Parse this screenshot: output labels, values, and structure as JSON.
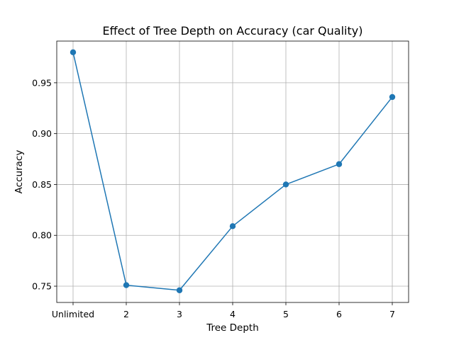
{
  "chart_data": {
    "type": "line",
    "title": "Effect of Tree Depth on Accuracy (car Quality)",
    "xlabel": "Tree Depth",
    "ylabel": "Accuracy",
    "categories": [
      "Unlimited",
      "2",
      "3",
      "4",
      "5",
      "6",
      "7"
    ],
    "series": [
      {
        "values": [
          0.98,
          0.751,
          0.746,
          0.809,
          0.85,
          0.87,
          0.936
        ],
        "color": "#1f77b4",
        "marker": "circle"
      }
    ],
    "ylim": [
      0.734,
      0.991
    ],
    "yticks": [
      0.75,
      0.8,
      0.85,
      0.9,
      0.95
    ],
    "ytick_labels": [
      "0.75",
      "0.80",
      "0.85",
      "0.90",
      "0.95"
    ],
    "grid": true,
    "colors": {
      "grid": "#b0b0b0",
      "axis": "#000000"
    }
  }
}
